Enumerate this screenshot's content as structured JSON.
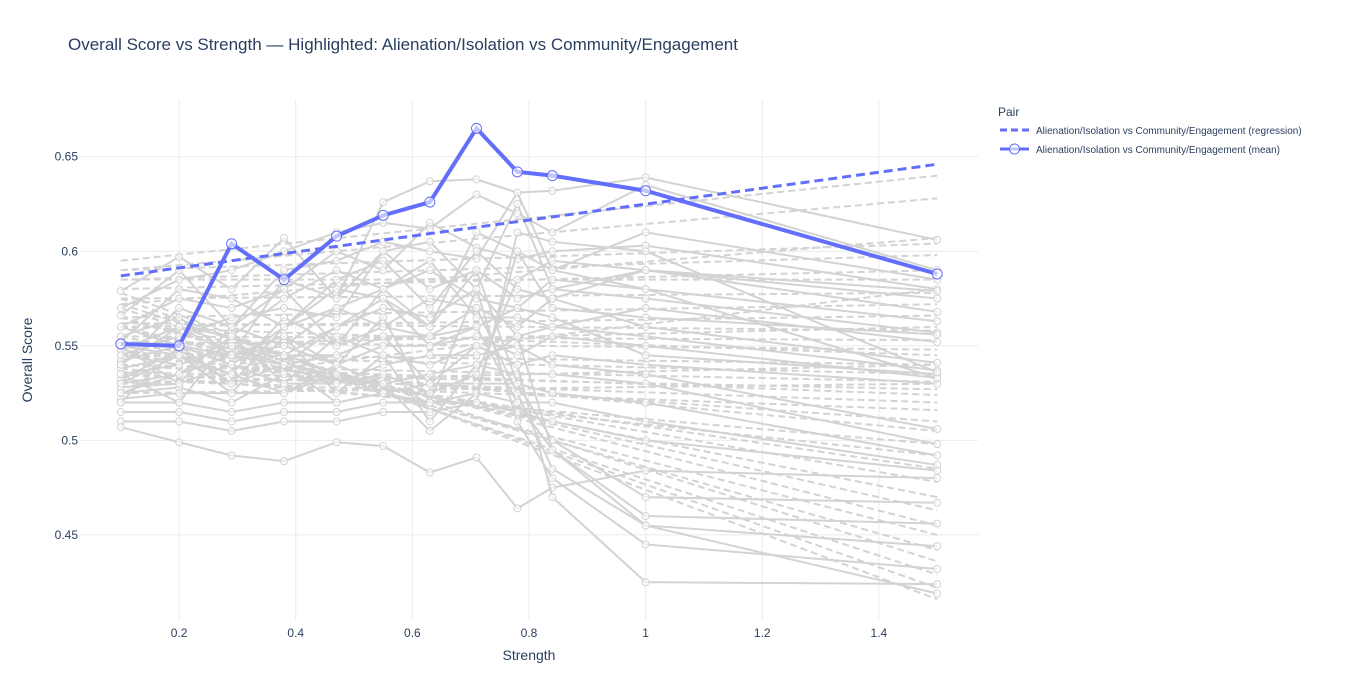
{
  "chart_data": {
    "type": "line",
    "title": "Overall Score vs Strength — Highlighted: Alienation/Isolation vs Community/Engagement",
    "xlabel": "Strength",
    "ylabel": "Overall Score",
    "xlim": [
      0.03,
      1.57
    ],
    "ylim": [
      0.405,
      0.68
    ],
    "x_ticks": [
      0.2,
      0.4,
      0.6,
      0.8,
      1.0,
      1.2,
      1.4
    ],
    "x_tick_labels": [
      "0.2",
      "0.4",
      "0.6",
      "0.8",
      "1",
      "1.2",
      "1.4"
    ],
    "y_ticks": [
      0.45,
      0.5,
      0.55,
      0.6,
      0.65
    ],
    "y_tick_labels": [
      "0.45",
      "0.5",
      "0.55",
      "0.6",
      "0.65"
    ],
    "grid": true,
    "legend": {
      "title": "Pair",
      "placement": "top-right",
      "entries": [
        "Alienation/Isolation vs Community/Engagement (regression)",
        "Alienation/Isolation vs Community/Engagement (mean)"
      ]
    },
    "strength_levels": [
      0.1,
      0.2,
      0.29,
      0.38,
      0.47,
      0.55,
      0.63,
      0.71,
      0.78,
      0.84,
      1.0,
      1.5
    ],
    "highlight": {
      "color": "#636efa",
      "mean": {
        "x": [
          0.1,
          0.2,
          0.29,
          0.38,
          0.47,
          0.55,
          0.63,
          0.71,
          0.78,
          0.84,
          1.0,
          1.5
        ],
        "y": [
          0.551,
          0.55,
          0.604,
          0.585,
          0.608,
          0.619,
          0.626,
          0.665,
          0.642,
          0.64,
          0.632,
          0.588
        ]
      },
      "regression": {
        "x": [
          0.1,
          1.5
        ],
        "y": [
          0.587,
          0.646
        ]
      }
    },
    "background_color": "#d3d3d3",
    "background_regressions": [
      [
        0.595,
        0.64
      ],
      [
        0.59,
        0.628
      ],
      [
        0.572,
        0.607
      ],
      [
        0.59,
        0.604
      ],
      [
        0.585,
        0.598
      ],
      [
        0.58,
        0.59
      ],
      [
        0.585,
        0.585
      ],
      [
        0.575,
        0.578
      ],
      [
        0.565,
        0.572
      ],
      [
        0.56,
        0.566
      ],
      [
        0.562,
        0.558
      ],
      [
        0.555,
        0.553
      ],
      [
        0.552,
        0.548
      ],
      [
        0.546,
        0.54
      ],
      [
        0.545,
        0.535
      ],
      [
        0.54,
        0.531
      ],
      [
        0.536,
        0.527
      ],
      [
        0.54,
        0.524
      ],
      [
        0.535,
        0.52
      ],
      [
        0.532,
        0.516
      ],
      [
        0.54,
        0.51
      ],
      [
        0.545,
        0.505
      ],
      [
        0.535,
        0.498
      ],
      [
        0.538,
        0.492
      ],
      [
        0.548,
        0.485
      ],
      [
        0.552,
        0.478
      ],
      [
        0.555,
        0.47
      ],
      [
        0.56,
        0.463
      ],
      [
        0.565,
        0.455
      ],
      [
        0.56,
        0.45
      ],
      [
        0.565,
        0.442
      ],
      [
        0.572,
        0.436
      ],
      [
        0.57,
        0.429
      ],
      [
        0.575,
        0.422
      ],
      [
        0.578,
        0.416
      ],
      [
        0.56,
        0.545
      ],
      [
        0.55,
        0.56
      ],
      [
        0.53,
        0.54
      ],
      [
        0.525,
        0.53
      ],
      [
        0.528,
        0.58
      ]
    ],
    "background_means": [
      [
        0.579,
        0.597,
        0.58,
        0.607,
        0.575,
        0.626,
        0.637,
        0.638,
        0.631,
        0.632,
        0.639,
        0.606
      ],
      [
        0.57,
        0.585,
        0.59,
        0.6,
        0.61,
        0.615,
        0.612,
        0.63,
        0.62,
        0.61,
        0.635,
        0.59
      ],
      [
        0.566,
        0.59,
        0.56,
        0.59,
        0.595,
        0.605,
        0.6,
        0.596,
        0.631,
        0.59,
        0.61,
        0.585
      ],
      [
        0.56,
        0.575,
        0.57,
        0.58,
        0.6,
        0.59,
        0.615,
        0.602,
        0.596,
        0.6,
        0.603,
        0.58
      ],
      [
        0.555,
        0.565,
        0.545,
        0.585,
        0.575,
        0.6,
        0.605,
        0.58,
        0.625,
        0.58,
        0.59,
        0.575
      ],
      [
        0.552,
        0.58,
        0.575,
        0.56,
        0.585,
        0.595,
        0.57,
        0.6,
        0.58,
        0.575,
        0.59,
        0.568
      ],
      [
        0.548,
        0.56,
        0.555,
        0.575,
        0.59,
        0.58,
        0.59,
        0.575,
        0.57,
        0.585,
        0.58,
        0.563
      ],
      [
        0.545,
        0.555,
        0.565,
        0.57,
        0.565,
        0.6,
        0.58,
        0.59,
        0.575,
        0.58,
        0.575,
        0.557
      ],
      [
        0.542,
        0.55,
        0.54,
        0.56,
        0.58,
        0.575,
        0.56,
        0.61,
        0.6,
        0.57,
        0.565,
        0.556
      ],
      [
        0.54,
        0.57,
        0.56,
        0.55,
        0.57,
        0.58,
        0.595,
        0.565,
        0.565,
        0.56,
        0.57,
        0.552
      ],
      [
        0.538,
        0.545,
        0.535,
        0.565,
        0.55,
        0.56,
        0.575,
        0.57,
        0.56,
        0.575,
        0.56,
        0.541
      ],
      [
        0.535,
        0.54,
        0.55,
        0.545,
        0.56,
        0.57,
        0.565,
        0.58,
        0.555,
        0.56,
        0.555,
        0.537
      ],
      [
        0.532,
        0.548,
        0.53,
        0.54,
        0.545,
        0.555,
        0.555,
        0.56,
        0.57,
        0.565,
        0.545,
        0.535
      ],
      [
        0.53,
        0.535,
        0.545,
        0.555,
        0.54,
        0.55,
        0.55,
        0.555,
        0.545,
        0.555,
        0.55,
        0.533
      ],
      [
        0.528,
        0.53,
        0.54,
        0.53,
        0.555,
        0.545,
        0.54,
        0.55,
        0.54,
        0.545,
        0.54,
        0.53
      ],
      [
        0.525,
        0.528,
        0.52,
        0.535,
        0.53,
        0.54,
        0.545,
        0.545,
        0.55,
        0.54,
        0.535,
        0.506
      ],
      [
        0.522,
        0.525,
        0.525,
        0.525,
        0.535,
        0.53,
        0.535,
        0.54,
        0.535,
        0.535,
        0.53,
        0.498
      ],
      [
        0.52,
        0.52,
        0.515,
        0.52,
        0.52,
        0.525,
        0.53,
        0.53,
        0.53,
        0.525,
        0.52,
        0.492
      ],
      [
        0.515,
        0.515,
        0.51,
        0.515,
        0.515,
        0.52,
        0.52,
        0.525,
        0.52,
        0.52,
        0.51,
        0.487
      ],
      [
        0.51,
        0.51,
        0.505,
        0.51,
        0.51,
        0.515,
        0.515,
        0.52,
        0.515,
        0.51,
        0.5,
        0.484
      ],
      [
        0.507,
        0.499,
        0.492,
        0.489,
        0.499,
        0.497,
        0.483,
        0.491,
        0.464,
        0.475,
        0.484,
        0.48
      ],
      [
        0.55,
        0.53,
        0.56,
        0.58,
        0.55,
        0.58,
        0.56,
        0.59,
        0.53,
        0.5,
        0.47,
        0.467
      ],
      [
        0.545,
        0.54,
        0.55,
        0.54,
        0.56,
        0.575,
        0.55,
        0.56,
        0.52,
        0.495,
        0.46,
        0.456
      ],
      [
        0.56,
        0.55,
        0.53,
        0.56,
        0.57,
        0.56,
        0.555,
        0.57,
        0.525,
        0.485,
        0.455,
        0.444
      ],
      [
        0.54,
        0.56,
        0.545,
        0.55,
        0.54,
        0.565,
        0.52,
        0.58,
        0.51,
        0.48,
        0.445,
        0.432
      ],
      [
        0.535,
        0.52,
        0.555,
        0.545,
        0.545,
        0.555,
        0.53,
        0.55,
        0.54,
        0.47,
        0.425,
        0.424
      ],
      [
        0.53,
        0.545,
        0.525,
        0.555,
        0.525,
        0.545,
        0.51,
        0.54,
        0.555,
        0.495,
        0.455,
        0.419
      ],
      [
        0.55,
        0.545,
        0.535,
        0.525,
        0.54,
        0.53,
        0.505,
        0.525,
        0.6,
        0.59,
        0.58,
        0.533
      ],
      [
        0.52,
        0.55,
        0.545,
        0.54,
        0.52,
        0.525,
        0.52,
        0.52,
        0.61,
        0.605,
        0.6,
        0.536
      ],
      [
        0.525,
        0.535,
        0.555,
        0.53,
        0.53,
        0.535,
        0.525,
        0.535,
        0.585,
        0.595,
        0.59,
        0.579
      ]
    ]
  }
}
